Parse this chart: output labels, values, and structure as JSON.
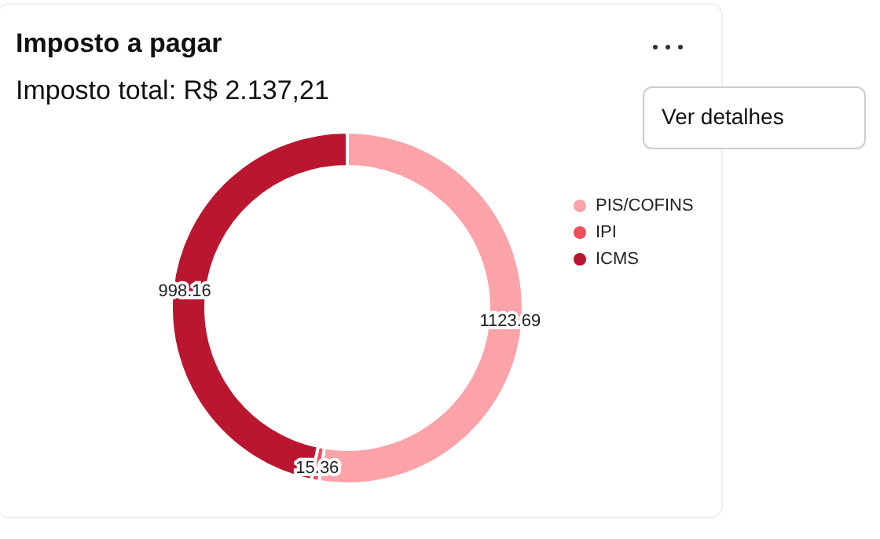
{
  "chart_data": {
    "type": "donut",
    "title": "Imposto a pagar",
    "subtitle": "Imposto total: R$ 2.137,21",
    "categories": [
      "PIS/COFINS",
      "IPI",
      "ICMS"
    ],
    "values": [
      1123.69,
      15.36,
      998.16
    ],
    "colors": [
      "#fba3a8",
      "#f24f5c",
      "#bb1630"
    ],
    "data_labels": true,
    "legend": "right",
    "annotations": [
      "Ver detalhes"
    ]
  }
}
